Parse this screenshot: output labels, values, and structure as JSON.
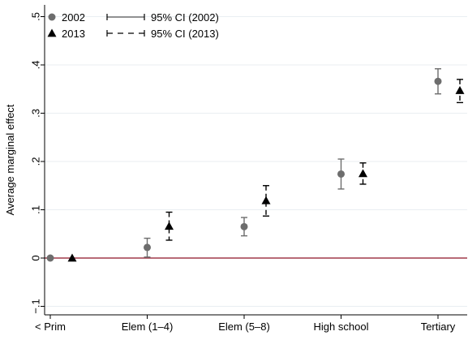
{
  "chart_data": {
    "type": "scatter",
    "title": "",
    "xlabel": "",
    "ylabel": "Average marginal effect",
    "ylim": [
      -0.1,
      0.5
    ],
    "yticks": [
      {
        "v": -0.1,
        "label": "−.1"
      },
      {
        "v": 0,
        "label": "0"
      },
      {
        "v": 0.1,
        "label": ".1"
      },
      {
        "v": 0.2,
        "label": ".2"
      },
      {
        "v": 0.3,
        "label": ".3"
      },
      {
        "v": 0.4,
        "label": ".4"
      },
      {
        "v": 0.5,
        "label": ".5"
      }
    ],
    "categories": [
      "< Prim",
      "Elem (1–4)",
      "Elem (5–8)",
      "High school",
      "Tertiary"
    ],
    "grid": true,
    "reference_line": {
      "y": 0,
      "color": "#a03a4a"
    },
    "legend": {
      "placement": "top-left",
      "items": [
        {
          "label": "2002",
          "kind": "marker",
          "series": 0
        },
        {
          "label": "95% CI (2002)",
          "kind": "ci",
          "series": 0
        },
        {
          "label": "2013",
          "kind": "marker",
          "series": 1
        },
        {
          "label": "95% CI (2013)",
          "kind": "ci",
          "series": 1
        }
      ]
    },
    "series": [
      {
        "name": "2002",
        "marker": "circle",
        "color": "#6d6d6d",
        "ci_style": "solid",
        "points": [
          {
            "category": "< Prim",
            "y": 0.0,
            "lo": null,
            "hi": null
          },
          {
            "category": "Elem (1–4)",
            "y": 0.022,
            "lo": 0.002,
            "hi": 0.041
          },
          {
            "category": "Elem (5–8)",
            "y": 0.065,
            "lo": 0.046,
            "hi": 0.084
          },
          {
            "category": "High school",
            "y": 0.174,
            "lo": 0.143,
            "hi": 0.205
          },
          {
            "category": "Tertiary",
            "y": 0.366,
            "lo": 0.34,
            "hi": 0.392
          }
        ]
      },
      {
        "name": "2013",
        "marker": "triangle",
        "color": "#000000",
        "ci_style": "dashed",
        "points": [
          {
            "category": "< Prim",
            "y": 0.0,
            "lo": null,
            "hi": null
          },
          {
            "category": "Elem (1–4)",
            "y": 0.066,
            "lo": 0.037,
            "hi": 0.095
          },
          {
            "category": "Elem (5–8)",
            "y": 0.119,
            "lo": 0.087,
            "hi": 0.15
          },
          {
            "category": "High school",
            "y": 0.175,
            "lo": 0.153,
            "hi": 0.197
          },
          {
            "category": "Tertiary",
            "y": 0.347,
            "lo": 0.322,
            "hi": 0.37
          }
        ]
      }
    ]
  }
}
